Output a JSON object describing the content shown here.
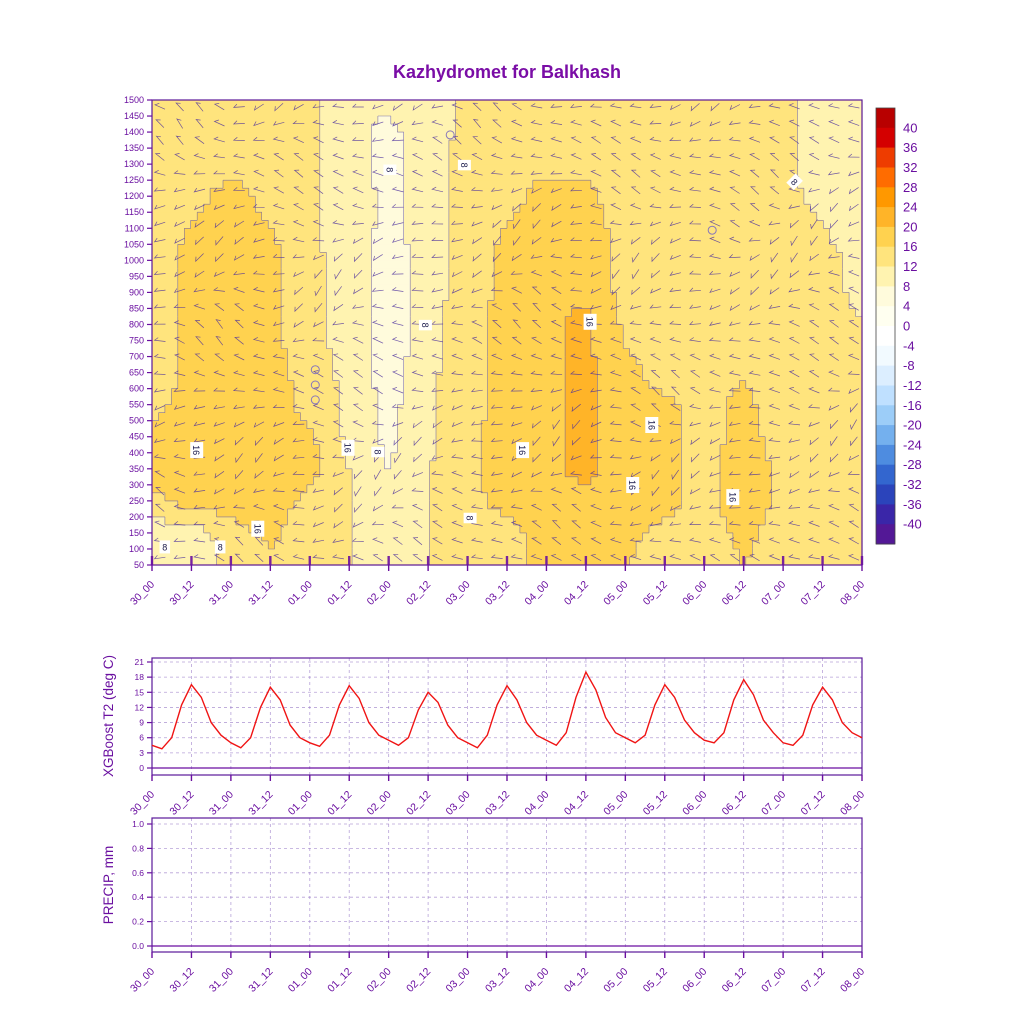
{
  "title": "Kazhydromet for Balkhash",
  "colors": {
    "axis": "#6a0fa0",
    "title": "#7a0da6",
    "t2_line": "#f01414",
    "barb": "#4b2e9e",
    "contour_line": "#6b5fa8",
    "grid_dash": "#9a7bc8",
    "marker": "#8877bb",
    "frame": "#5a189a"
  },
  "time_labels": [
    "30_00",
    "30_12",
    "31_00",
    "31_12",
    "01_00",
    "01_12",
    "02_00",
    "02_12",
    "03_00",
    "03_12",
    "04_00",
    "04_12",
    "05_00",
    "05_12",
    "06_00",
    "06_12",
    "07_00",
    "07_12",
    "08_00"
  ],
  "chart_data": [
    {
      "type": "heatmap",
      "title": "Kazhydromet for Balkhash",
      "x_categories": [
        "30_00",
        "30_12",
        "31_00",
        "31_12",
        "01_00",
        "01_12",
        "02_00",
        "02_12",
        "03_00",
        "03_12",
        "04_00",
        "04_12",
        "05_00",
        "05_12",
        "06_00",
        "06_12",
        "07_00",
        "07_12",
        "08_00"
      ],
      "y_ticks": [
        1500,
        1450,
        1400,
        1350,
        1300,
        1250,
        1200,
        1150,
        1100,
        1050,
        1000,
        950,
        900,
        850,
        800,
        750,
        700,
        650,
        600,
        550,
        500,
        450,
        400,
        350,
        300,
        250,
        200,
        150,
        100,
        50
      ],
      "grid_levels": [
        1500,
        1400,
        1300,
        1200,
        1100,
        1000,
        900,
        800,
        700,
        600,
        500,
        400,
        300,
        200,
        100,
        50
      ],
      "values": [
        [
          13,
          13,
          14,
          14,
          13,
          9,
          9,
          10,
          13,
          14,
          14,
          13,
          14,
          13,
          13,
          13,
          13,
          10,
          9
        ],
        [
          13,
          14,
          14,
          14,
          13,
          9,
          7,
          10,
          13,
          14,
          15,
          14,
          14,
          13,
          13,
          13,
          13,
          10,
          9
        ],
        [
          13,
          14,
          15,
          15,
          13,
          9,
          7,
          10,
          14,
          15,
          15,
          15,
          14,
          13,
          13,
          14,
          13,
          10,
          9
        ],
        [
          13,
          15,
          17,
          15,
          13,
          10,
          7,
          10,
          14,
          15,
          17,
          17,
          14,
          13,
          14,
          14,
          13,
          11,
          10
        ],
        [
          14,
          16,
          17,
          16,
          13,
          10,
          7,
          10,
          14,
          16,
          17,
          17,
          15,
          14,
          15,
          14,
          13,
          12,
          10
        ],
        [
          14,
          17,
          18,
          17,
          13,
          10,
          6,
          10,
          14,
          17,
          18,
          18,
          15,
          14,
          15,
          14,
          13,
          13,
          11
        ],
        [
          14,
          17,
          18,
          17,
          14,
          10,
          6,
          10,
          14,
          17,
          18,
          18,
          15,
          14,
          15,
          15,
          13,
          13,
          11
        ],
        [
          14,
          17,
          18,
          17,
          14,
          10,
          6,
          10,
          15,
          17,
          19,
          21,
          15,
          14,
          15,
          15,
          14,
          13,
          12
        ],
        [
          14,
          17,
          18,
          17,
          14,
          10,
          6,
          10,
          15,
          17,
          19,
          21,
          16,
          15,
          15,
          15,
          14,
          13,
          12
        ],
        [
          14,
          17,
          18,
          18,
          14,
          11,
          6,
          11,
          15,
          17,
          19,
          21,
          17,
          15,
          15,
          16,
          14,
          13,
          12
        ],
        [
          15,
          18,
          18,
          18,
          15,
          11,
          7,
          11,
          15,
          17,
          19,
          21,
          17,
          17,
          15,
          17,
          14,
          14,
          12
        ],
        [
          17,
          18,
          18,
          18,
          17,
          11,
          7,
          11,
          15,
          18,
          19,
          21,
          18,
          17,
          15,
          17,
          15,
          14,
          13
        ],
        [
          17,
          18,
          18,
          18,
          17,
          12,
          8,
          12,
          15,
          18,
          19,
          21,
          18,
          17,
          15,
          18,
          15,
          15,
          13
        ],
        [
          15,
          17,
          18,
          18,
          15,
          12,
          9,
          12,
          15,
          17,
          18,
          19,
          18,
          17,
          15,
          18,
          15,
          15,
          13
        ],
        [
          9,
          10,
          14,
          17,
          13,
          12,
          10,
          12,
          14,
          15,
          17,
          18,
          17,
          15,
          14,
          17,
          14,
          14,
          13
        ],
        [
          8,
          9,
          13,
          15,
          13,
          12,
          10,
          12,
          14,
          15,
          17,
          17,
          16,
          14,
          14,
          16,
          14,
          14,
          13
        ]
      ],
      "colorbar": {
        "tick_labels": [
          40,
          36,
          32,
          28,
          24,
          20,
          16,
          12,
          8,
          4,
          0,
          -4,
          -8,
          -12,
          -16,
          -20,
          -24,
          -28,
          -32,
          -36,
          -40
        ],
        "colors": [
          "#b80000",
          "#d40000",
          "#ee3c00",
          "#ff6c00",
          "#ff9800",
          "#ffb428",
          "#ffd24f",
          "#ffe47d",
          "#fff3b0",
          "#fffbdc",
          "#fffff0",
          "#ffffff",
          "#f2faff",
          "#dceeff",
          "#bfe0ff",
          "#9ccdf8",
          "#74b0ee",
          "#4e8ce0",
          "#3366cf",
          "#2b44bb",
          "#3a26a8",
          "#531896"
        ]
      },
      "contour_labels": [
        {
          "text": "8",
          "x": 0.335,
          "y": 0.15,
          "rot": 90
        },
        {
          "text": "8",
          "x": 0.44,
          "y": 0.14,
          "rot": 90
        },
        {
          "text": "8",
          "x": 0.905,
          "y": 0.176,
          "rot": 45
        },
        {
          "text": "8",
          "x": 0.385,
          "y": 0.484,
          "rot": 90
        },
        {
          "text": "16",
          "x": 0.617,
          "y": 0.477,
          "rot": 90
        },
        {
          "text": "16",
          "x": 0.063,
          "y": 0.753,
          "rot": 90
        },
        {
          "text": "16",
          "x": 0.276,
          "y": 0.748,
          "rot": 90
        },
        {
          "text": "8",
          "x": 0.318,
          "y": 0.757,
          "rot": 90
        },
        {
          "text": "16",
          "x": 0.522,
          "y": 0.753,
          "rot": 90
        },
        {
          "text": "16",
          "x": 0.704,
          "y": 0.699,
          "rot": 90
        },
        {
          "text": "16",
          "x": 0.677,
          "y": 0.828,
          "rot": 90
        },
        {
          "text": "16",
          "x": 0.818,
          "y": 0.854,
          "rot": 90
        },
        {
          "text": "8",
          "x": 0.448,
          "y": 0.899,
          "rot": 90
        },
        {
          "text": "16",
          "x": 0.149,
          "y": 0.922,
          "rot": 90
        },
        {
          "text": "8",
          "x": 0.018,
          "y": 0.961,
          "rot": 0
        },
        {
          "text": "8",
          "x": 0.096,
          "y": 0.961,
          "rot": 0
        }
      ],
      "markers": [
        {
          "x": 0.42,
          "y": 0.075
        },
        {
          "x": 0.789,
          "y": 0.28
        },
        {
          "x": 0.23,
          "y": 0.58
        },
        {
          "x": 0.23,
          "y": 0.613
        },
        {
          "x": 0.23,
          "y": 0.645
        }
      ]
    },
    {
      "type": "line",
      "ylabel": "XGBoost T2 (deg C)",
      "y_ticks": [
        0,
        3,
        6,
        9,
        12,
        15,
        18,
        21
      ],
      "ylim": [
        0,
        21
      ],
      "x_categories": [
        "30_00",
        "30_12",
        "31_00",
        "31_12",
        "01_00",
        "01_12",
        "02_00",
        "02_12",
        "03_00",
        "03_12",
        "04_00",
        "04_12",
        "05_00",
        "05_12",
        "06_00",
        "06_12",
        "07_00",
        "07_12",
        "08_00"
      ],
      "x_step_hours": 3,
      "span_hours": 216,
      "values": [
        4.5,
        3.8,
        6.0,
        12.5,
        16.5,
        14.0,
        9.0,
        6.5,
        5.0,
        4.0,
        6.0,
        12.0,
        16.0,
        13.5,
        8.5,
        6.0,
        5.0,
        4.3,
        6.5,
        12.5,
        16.3,
        13.8,
        9.0,
        6.5,
        5.5,
        4.5,
        6.0,
        11.5,
        15.0,
        13.0,
        8.5,
        6.0,
        5.0,
        4.0,
        6.5,
        12.5,
        16.3,
        13.5,
        9.0,
        6.5,
        5.5,
        4.5,
        7.0,
        14.0,
        19.0,
        15.5,
        10.0,
        7.0,
        6.0,
        5.0,
        6.5,
        12.5,
        16.5,
        14.0,
        9.5,
        7.0,
        5.5,
        5.0,
        7.0,
        13.5,
        17.5,
        14.5,
        9.5,
        7.0,
        5.0,
        4.5,
        6.5,
        12.5,
        16.0,
        13.5,
        9.0,
        7.0,
        6.0
      ]
    },
    {
      "type": "line",
      "ylabel": "PRECIP, mm",
      "y_tick_labels": [
        "0.0",
        "0.2",
        "0.4",
        "0.6",
        "0.8",
        "1.0"
      ],
      "ylim": [
        0,
        1
      ],
      "x_categories": [
        "30_00",
        "30_12",
        "31_00",
        "31_12",
        "01_00",
        "01_12",
        "02_00",
        "02_12",
        "03_00",
        "03_12",
        "04_00",
        "04_12",
        "05_00",
        "05_12",
        "06_00",
        "06_12",
        "07_00",
        "07_12",
        "08_00"
      ],
      "values": [
        0,
        0,
        0,
        0,
        0,
        0,
        0,
        0,
        0,
        0,
        0,
        0,
        0,
        0,
        0,
        0,
        0,
        0,
        0
      ]
    }
  ]
}
